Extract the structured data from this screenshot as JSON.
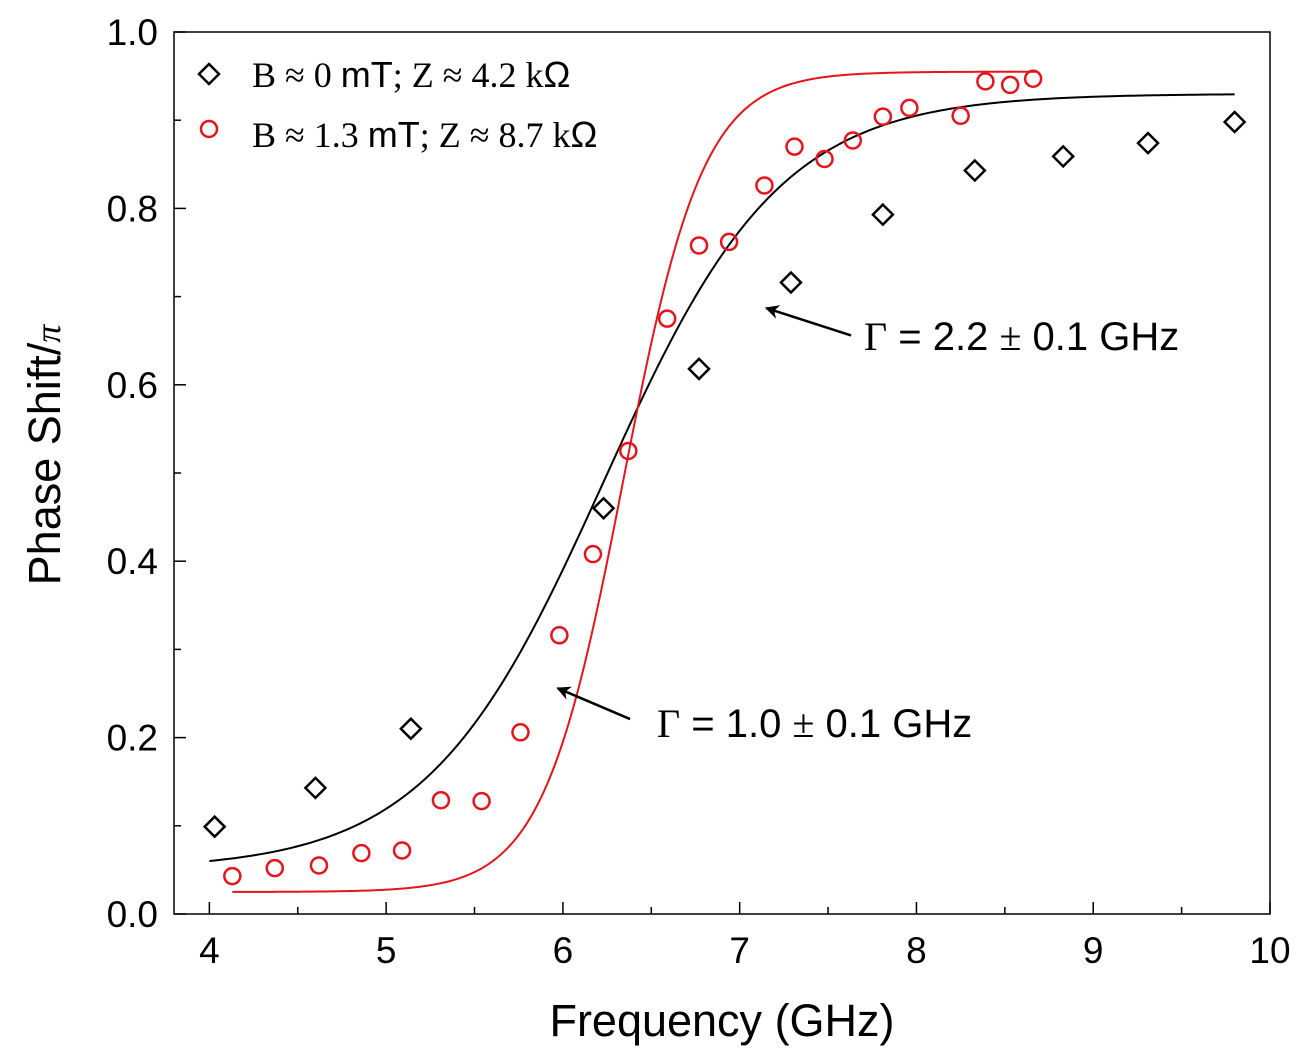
{
  "chart_data": {
    "type": "scatter",
    "xlabel": "Frequency (GHz)",
    "ylabel_main": "Phase Shift/",
    "ylabel_symbol": "π",
    "xlim": [
      3.8,
      10
    ],
    "ylim": [
      0,
      1
    ],
    "x_ticks": [
      4,
      5,
      6,
      7,
      8,
      9,
      10
    ],
    "x_tick_labels": [
      "4",
      "5",
      "6",
      "7",
      "8",
      "9",
      "10"
    ],
    "y_ticks": [
      0,
      0.2,
      0.4,
      0.6,
      0.8,
      1.0
    ],
    "y_tick_labels": [
      "0.0",
      "0.2",
      "0.4",
      "0.6",
      "0.8",
      "1.0"
    ],
    "legend_position": "top-left",
    "colors": {
      "black": "#000000",
      "red": "#e8141b"
    },
    "series": [
      {
        "name": "B ≈ 0 mT; Z ≈ 4.2 kΩ",
        "legend_parts": [
          "B ≈ 0 ",
          "mT",
          "; Z ≈ 4.2 k",
          "Ω"
        ],
        "marker": "diamond",
        "color": "#000000",
        "x": [
          4.03,
          4.6,
          5.14,
          6.23,
          6.77,
          7.29,
          7.81,
          8.33,
          8.83,
          9.31,
          9.8
        ],
        "y": [
          0.099,
          0.143,
          0.21,
          0.46,
          0.618,
          0.716,
          0.793,
          0.843,
          0.859,
          0.874,
          0.898
        ],
        "fit": {
          "x0": 6.23,
          "width": 2.2,
          "x_start": 4.0,
          "x_end": 9.8
        }
      },
      {
        "name": "B ≈ 1.3 mT; Z ≈ 8.7 kΩ",
        "legend_parts": [
          "B ≈ 1.3 ",
          "mT",
          "; Z ≈ 8.7 k",
          "Ω"
        ],
        "marker": "circle",
        "color": "#e8141b",
        "x": [
          4.13,
          4.37,
          4.62,
          4.86,
          5.09,
          5.31,
          5.54,
          5.76,
          5.98,
          6.17,
          6.37,
          6.59,
          6.77,
          6.94,
          7.14,
          7.31,
          7.48,
          7.64,
          7.81,
          7.96,
          8.25,
          8.39,
          8.53,
          8.66
        ],
        "y": [
          0.043,
          0.052,
          0.055,
          0.069,
          0.072,
          0.129,
          0.128,
          0.206,
          0.316,
          0.408,
          0.525,
          0.675,
          0.758,
          0.762,
          0.826,
          0.87,
          0.856,
          0.877,
          0.904,
          0.914,
          0.905,
          0.944,
          0.94,
          0.947
        ],
        "fit": {
          "x0": 6.34,
          "width": 1.0,
          "x_start": 4.13,
          "x_end": 8.68
        }
      }
    ],
    "annotations": [
      {
        "name": "annotation-gamma-black",
        "parts": [
          "Γ",
          " = 2.2 ",
          "±",
          " 0.1 GHz"
        ],
        "color": "#000000",
        "arrow_to": [
          7.15,
          0.687
        ],
        "arrow_from": [
          7.63,
          0.656
        ]
      },
      {
        "name": "annotation-gamma-red",
        "parts": [
          "Γ",
          " = 1.0 ",
          "±",
          " 0.1 GHz"
        ],
        "color": "#000000",
        "arrow_to": [
          5.97,
          0.256
        ],
        "arrow_from": [
          6.38,
          0.221
        ]
      }
    ]
  }
}
